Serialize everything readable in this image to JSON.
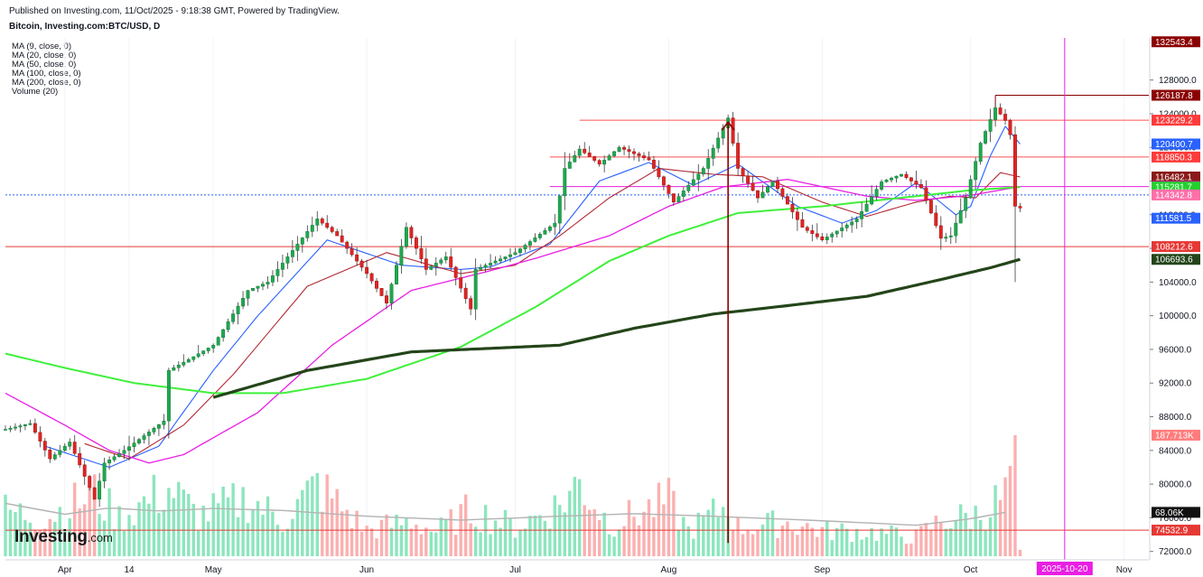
{
  "header": {
    "published": "Published on Investing.com, 11/Oct/2025 - 9:18:38 GMT, Powered by TradingView.",
    "title": "Bitcoin, Investing.com:BTC/USD, D"
  },
  "legend": [
    "MA (9, close, 0)",
    "MA (20, close, 0)",
    "MA (50, close, 0)",
    "MA (100, close, 0)",
    "MA (200, close, 0)",
    "Volume (20)"
  ],
  "logo": {
    "main": "Investing",
    "suffix": ".com"
  },
  "chart_data": {
    "type": "candlestick",
    "symbol": "BTC/USD",
    "interval": "D",
    "y_axis_ticks": [
      72000,
      76000,
      80000,
      84000,
      88000,
      92000,
      96000,
      100000,
      104000,
      108000,
      112000,
      116000,
      120000,
      124000,
      128000
    ],
    "y_tick_labels": [
      "72000.0",
      "76000.0",
      "80000.0",
      "84000.0",
      "88000.0",
      "92000.0",
      "96000.0",
      "100000.0",
      "104000.0",
      "108000.0",
      "112000.0",
      "116000.0",
      "120000.0",
      "124000.0",
      "128000.0"
    ],
    "ylim": [
      71000,
      133000
    ],
    "x_axis_labels": [
      {
        "label": "Apr",
        "date": "2025-04-01"
      },
      {
        "label": "14",
        "date": "2025-04-14"
      },
      {
        "label": "May",
        "date": "2025-05-01"
      },
      {
        "label": "Jun",
        "date": "2025-06-01"
      },
      {
        "label": "Jul",
        "date": "2025-07-01"
      },
      {
        "label": "Aug",
        "date": "2025-08-01"
      },
      {
        "label": "Sep",
        "date": "2025-09-01"
      },
      {
        "label": "Oct",
        "date": "2025-10-01"
      },
      {
        "label": "Nov",
        "date": "2025-11-01"
      }
    ],
    "x_range": [
      "2025-03-20",
      "2025-11-06"
    ],
    "cursor_date": "2025-10-20",
    "price_anchors": [
      [
        "2025-03-20",
        86500
      ],
      [
        "2025-03-25",
        87200
      ],
      [
        "2025-03-29",
        83000
      ],
      [
        "2025-04-02",
        85000
      ],
      [
        "2025-04-07",
        78200
      ],
      [
        "2025-04-09",
        82500
      ],
      [
        "2025-04-13",
        84000
      ],
      [
        "2025-04-21",
        87500
      ],
      [
        "2025-04-22",
        93500
      ],
      [
        "2025-04-26",
        94800
      ],
      [
        "2025-05-01",
        96500
      ],
      [
        "2025-05-08",
        103000
      ],
      [
        "2025-05-12",
        104000
      ],
      [
        "2025-05-22",
        111500
      ],
      [
        "2025-05-26",
        109500
      ],
      [
        "2025-06-01",
        105000
      ],
      [
        "2025-06-05",
        101500
      ],
      [
        "2025-06-09",
        110500
      ],
      [
        "2025-06-13",
        105500
      ],
      [
        "2025-06-17",
        107000
      ],
      [
        "2025-06-22",
        100800
      ],
      [
        "2025-06-23",
        105500
      ],
      [
        "2025-07-01",
        107500
      ],
      [
        "2025-07-09",
        111000
      ],
      [
        "2025-07-11",
        117500
      ],
      [
        "2025-07-14",
        119800
      ],
      [
        "2025-07-18",
        118000
      ],
      [
        "2025-07-22",
        120000
      ],
      [
        "2025-07-28",
        118500
      ],
      [
        "2025-08-02",
        113500
      ],
      [
        "2025-08-08",
        117500
      ],
      [
        "2025-08-13",
        123500
      ],
      [
        "2025-08-15",
        117500
      ],
      [
        "2025-08-19",
        114000
      ],
      [
        "2025-08-22",
        116000
      ],
      [
        "2025-08-28",
        110500
      ],
      [
        "2025-09-01",
        109000
      ],
      [
        "2025-09-08",
        111500
      ],
      [
        "2025-09-13",
        115900
      ],
      [
        "2025-09-17",
        116800
      ],
      [
        "2025-09-21",
        115200
      ],
      [
        "2025-09-25",
        109200
      ],
      [
        "2025-09-27",
        109500
      ],
      [
        "2025-09-30",
        114000
      ],
      [
        "2025-10-03",
        120500
      ],
      [
        "2025-10-06",
        124700
      ],
      [
        "2025-10-08",
        123200
      ],
      [
        "2025-10-09",
        121500
      ],
      [
        "2025-10-10",
        113000
      ],
      [
        "2025-10-11",
        112800
      ]
    ],
    "final_candle": {
      "date": "2025-10-10",
      "open": 121500,
      "high": 122500,
      "low": 104000,
      "close": 113000
    },
    "moving_averages": [
      {
        "name": "MA (9, close, 0)",
        "color": "#2962ff",
        "width": 1.1,
        "anchors": [
          [
            "2025-03-28",
            84500
          ],
          [
            "2025-04-10",
            82000
          ],
          [
            "2025-04-20",
            84500
          ],
          [
            "2025-05-01",
            93500
          ],
          [
            "2025-05-10",
            100000
          ],
          [
            "2025-05-24",
            109000
          ],
          [
            "2025-06-08",
            106000
          ],
          [
            "2025-06-20",
            105500
          ],
          [
            "2025-06-26",
            105800
          ],
          [
            "2025-07-08",
            108500
          ],
          [
            "2025-07-18",
            116000
          ],
          [
            "2025-07-28",
            118200
          ],
          [
            "2025-08-06",
            115500
          ],
          [
            "2025-08-15",
            118000
          ],
          [
            "2025-08-27",
            113000
          ],
          [
            "2025-09-05",
            111000
          ],
          [
            "2025-09-12",
            112500
          ],
          [
            "2025-09-20",
            115800
          ],
          [
            "2025-09-28",
            112000
          ],
          [
            "2025-10-01",
            113000
          ],
          [
            "2025-10-05",
            119000
          ],
          [
            "2025-10-08",
            122500
          ],
          [
            "2025-10-11",
            120400
          ]
        ]
      },
      {
        "name": "MA (20, close, 0)",
        "color": "#b22833",
        "width": 1.1,
        "anchors": [
          [
            "2025-04-05",
            84800
          ],
          [
            "2025-04-14",
            83000
          ],
          [
            "2025-04-25",
            87000
          ],
          [
            "2025-05-05",
            93000
          ],
          [
            "2025-05-20",
            103500
          ],
          [
            "2025-06-05",
            107500
          ],
          [
            "2025-06-20",
            105000
          ],
          [
            "2025-07-01",
            106000
          ],
          [
            "2025-07-10",
            109500
          ],
          [
            "2025-07-20",
            114000
          ],
          [
            "2025-07-30",
            117500
          ],
          [
            "2025-08-10",
            116800
          ],
          [
            "2025-08-20",
            116500
          ],
          [
            "2025-09-01",
            113500
          ],
          [
            "2025-09-10",
            111800
          ],
          [
            "2025-09-20",
            113500
          ],
          [
            "2025-09-27",
            114200
          ],
          [
            "2025-10-02",
            114000
          ],
          [
            "2025-10-07",
            117000
          ],
          [
            "2025-10-11",
            116482
          ]
        ]
      },
      {
        "name": "MA (50, close, 0)",
        "color": "#e91ee3",
        "width": 1.3,
        "anchors": [
          [
            "2025-03-20",
            90800
          ],
          [
            "2025-04-01",
            87000
          ],
          [
            "2025-04-10",
            84000
          ],
          [
            "2025-04-18",
            82500
          ],
          [
            "2025-04-25",
            83500
          ],
          [
            "2025-05-10",
            88500
          ],
          [
            "2025-05-25",
            96500
          ],
          [
            "2025-06-10",
            103000
          ],
          [
            "2025-06-25",
            105200
          ],
          [
            "2025-07-05",
            106800
          ],
          [
            "2025-07-20",
            109500
          ],
          [
            "2025-08-01",
            113000
          ],
          [
            "2025-08-12",
            115300
          ],
          [
            "2025-08-25",
            116200
          ],
          [
            "2025-09-10",
            114200
          ],
          [
            "2025-09-20",
            113700
          ],
          [
            "2025-10-01",
            114300
          ],
          [
            "2025-10-11",
            115343
          ]
        ]
      },
      {
        "name": "MA (100, close, 0)",
        "color": "#3ff03b",
        "width": 2.0,
        "anchors": [
          [
            "2025-03-20",
            95500
          ],
          [
            "2025-04-01",
            93800
          ],
          [
            "2025-04-15",
            92000
          ],
          [
            "2025-05-01",
            90800
          ],
          [
            "2025-05-15",
            90800
          ],
          [
            "2025-06-01",
            92500
          ],
          [
            "2025-06-20",
            96300
          ],
          [
            "2025-07-05",
            101000
          ],
          [
            "2025-07-20",
            106500
          ],
          [
            "2025-08-01",
            109500
          ],
          [
            "2025-08-15",
            112200
          ],
          [
            "2025-09-01",
            113000
          ],
          [
            "2025-09-20",
            114200
          ],
          [
            "2025-10-01",
            114900
          ],
          [
            "2025-10-11",
            115282
          ]
        ]
      },
      {
        "name": "MA (200, close, 0)",
        "color": "#24451a",
        "width": 3.2,
        "anchors": [
          [
            "2025-05-01",
            90300
          ],
          [
            "2025-05-20",
            93500
          ],
          [
            "2025-06-10",
            95700
          ],
          [
            "2025-06-25",
            96100
          ],
          [
            "2025-07-10",
            96500
          ],
          [
            "2025-07-25",
            98500
          ],
          [
            "2025-08-10",
            100200
          ],
          [
            "2025-08-25",
            101200
          ],
          [
            "2025-09-10",
            102300
          ],
          [
            "2025-09-25",
            104300
          ],
          [
            "2025-10-05",
            105700
          ],
          [
            "2025-10-11",
            106694
          ]
        ]
      }
    ],
    "horizontal_levels": [
      {
        "price": 123229.2,
        "label": "123229.2",
        "color": "#ff5252",
        "from": "2025-07-14"
      },
      {
        "price": 118850.3,
        "label": "118850.3",
        "color": "#ff5252",
        "from": "2025-07-08"
      },
      {
        "price": 115343.5,
        "label": "115343.5",
        "color": "#e91ee3",
        "from": "2025-07-08"
      },
      {
        "price": 108212.6,
        "label": "108212.6",
        "color": "#e53935",
        "from": "2025-03-20"
      },
      {
        "price": 74532.9,
        "label": "74532.9",
        "color": "#e53935",
        "from": "2025-03-20"
      },
      {
        "price": 126187.8,
        "label": "126187.8",
        "color": "#8b0000",
        "from": "2025-10-06"
      }
    ],
    "current_price_line": {
      "price": 114342.8,
      "label": "114342.8",
      "color": "#2962ff"
    },
    "arrow": {
      "date": "2025-08-13",
      "from_price": 73000,
      "to_price": 123000,
      "color": "#8b0000"
    },
    "axis_labels": [
      {
        "price": 132543.4,
        "text": "132543.4",
        "bg": "#8b0000",
        "fg": "#ffffff"
      },
      {
        "price": 126187.8,
        "text": "126187.8",
        "bg": "#8b0000",
        "fg": "#ffffff"
      },
      {
        "price": 123229.2,
        "text": "123229.2",
        "bg": "#ff3b3b",
        "fg": "#ffffff"
      },
      {
        "price": 120400.7,
        "text": "120400.7",
        "bg": "#2962ff",
        "fg": "#ffffff"
      },
      {
        "price": 118850.3,
        "text": "118850.3",
        "bg": "#ff3b3b",
        "fg": "#ffffff"
      },
      {
        "price": 116482.1,
        "text": "116482.1",
        "bg": "#8b1a1a",
        "fg": "#ffffff"
      },
      {
        "price": 115343.5,
        "text": "115343.5",
        "bg": "#e91ee3",
        "fg": "#ffffff"
      },
      {
        "price": 115281.7,
        "text": "115281.7",
        "bg": "#22d12e",
        "fg": "#ffffff"
      },
      {
        "price": 114342.8,
        "text": "114342.8",
        "bg": "#ff6fa8",
        "fg": "#ffffff"
      },
      {
        "price": 111581.5,
        "text": "111581.5",
        "bg": "#2962ff",
        "fg": "#ffffff"
      },
      {
        "price": 108212.6,
        "text": "108212.6",
        "bg": "#e53935",
        "fg": "#ffffff"
      },
      {
        "price": 106693.6,
        "text": "106693.6",
        "bg": "#24451a",
        "fg": "#ffffff"
      },
      {
        "price": 74532.9,
        "text": "74532.9",
        "bg": "#e53935",
        "fg": "#ffffff"
      }
    ],
    "volume": {
      "max_display": 210000,
      "last_label": "187.713K",
      "ma_label": "68.06K",
      "anchors": [
        [
          "2025-03-20",
          70000
        ],
        [
          "2025-03-28",
          60000
        ],
        [
          "2025-04-04",
          85000
        ],
        [
          "2025-04-07",
          95000
        ],
        [
          "2025-04-12",
          60000
        ],
        [
          "2025-04-22",
          105000
        ],
        [
          "2025-04-28",
          62000
        ],
        [
          "2025-05-08",
          90000
        ],
        [
          "2025-05-15",
          55000
        ],
        [
          "2025-05-22",
          110000
        ],
        [
          "2025-06-01",
          40000
        ],
        [
          "2025-06-10",
          55000
        ],
        [
          "2025-06-15",
          38000
        ],
        [
          "2025-06-22",
          72000
        ],
        [
          "2025-07-01",
          45000
        ],
        [
          "2025-07-10",
          80000
        ],
        [
          "2025-07-14",
          115000
        ],
        [
          "2025-07-20",
          50000
        ],
        [
          "2025-08-01",
          85000
        ],
        [
          "2025-08-05",
          40000
        ],
        [
          "2025-08-13",
          80000
        ],
        [
          "2025-08-15",
          45000
        ],
        [
          "2025-08-25",
          52000
        ],
        [
          "2025-09-01",
          40000
        ],
        [
          "2025-09-10",
          38000
        ],
        [
          "2025-09-20",
          30000
        ],
        [
          "2025-09-25",
          55000
        ],
        [
          "2025-10-03",
          65000
        ],
        [
          "2025-10-08",
          95000
        ],
        [
          "2025-10-09",
          140000
        ],
        [
          "2025-10-10",
          187713
        ],
        [
          "2025-10-11",
          10000
        ]
      ],
      "ma_anchors": [
        [
          "2025-03-20",
          82000
        ],
        [
          "2025-04-01",
          65000
        ],
        [
          "2025-04-10",
          75000
        ],
        [
          "2025-04-20",
          70000
        ],
        [
          "2025-05-01",
          74000
        ],
        [
          "2025-05-15",
          71000
        ],
        [
          "2025-06-01",
          62000
        ],
        [
          "2025-06-20",
          56000
        ],
        [
          "2025-07-10",
          62000
        ],
        [
          "2025-07-25",
          66000
        ],
        [
          "2025-08-10",
          62000
        ],
        [
          "2025-09-01",
          55000
        ],
        [
          "2025-09-20",
          48000
        ],
        [
          "2025-10-01",
          58000
        ],
        [
          "2025-10-08",
          68060
        ]
      ],
      "up_color": "#8ce6bd",
      "down_color": "#fbb0b0"
    },
    "colors": {
      "up": "#1fa84f",
      "down": "#e02424",
      "wick": "#3a3a3a",
      "cursor": "#e91ee3"
    },
    "bottom_date_label": {
      "text": "2025-10-20",
      "bg": "#e91ee3",
      "fg": "#ffffff"
    }
  }
}
